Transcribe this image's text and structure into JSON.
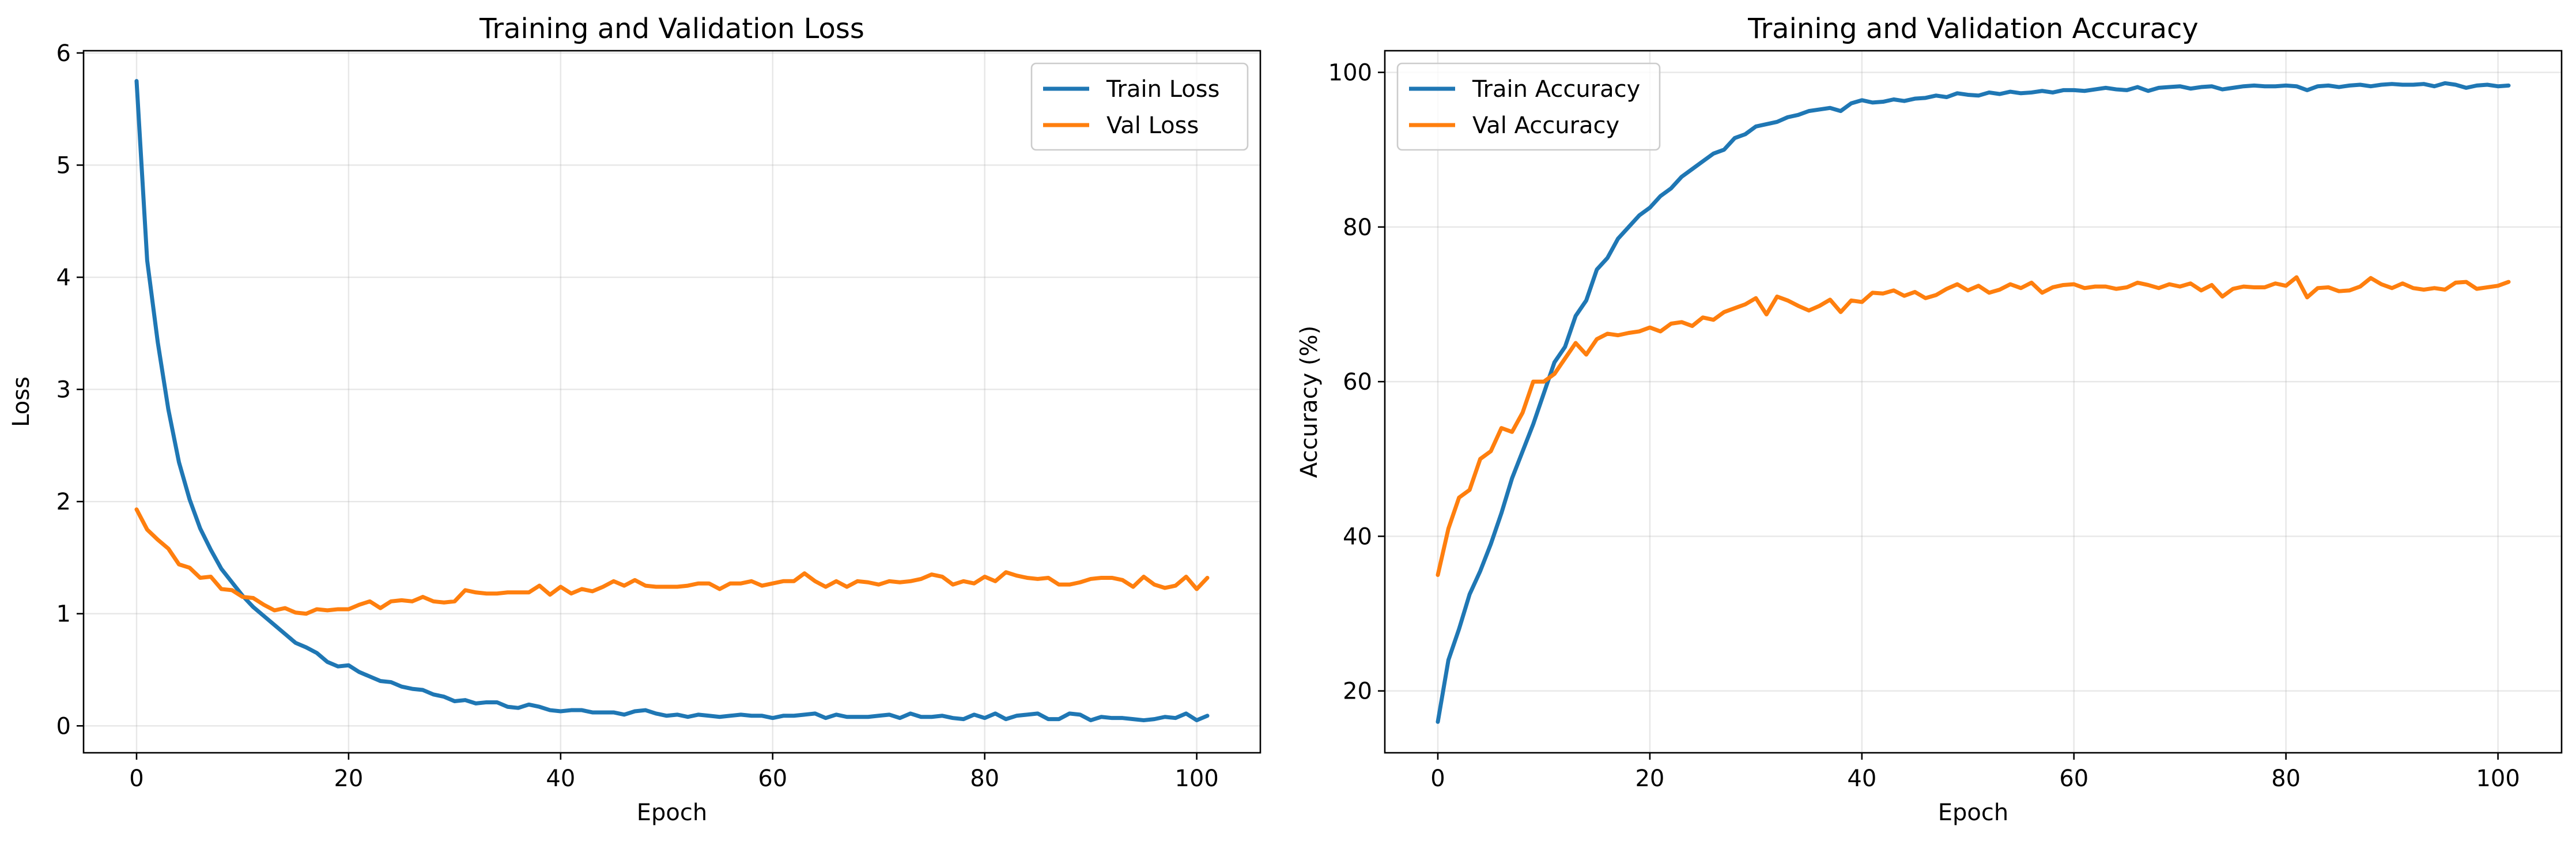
{
  "chart_data": [
    {
      "type": "line",
      "title": "Training and Validation Loss",
      "xlabel": "Epoch",
      "ylabel": "Loss",
      "xlim": [
        -5,
        106
      ],
      "ylim": [
        -0.24,
        6.02
      ],
      "xticks": [
        0,
        20,
        40,
        60,
        80,
        100
      ],
      "yticks": [
        0,
        1,
        2,
        3,
        4,
        5,
        6
      ],
      "grid": true,
      "legend_position": "top-right",
      "series": [
        {
          "name": "Train Loss",
          "color": "#1f77b4",
          "values": [
            5.75,
            4.15,
            3.42,
            2.82,
            2.35,
            2.02,
            1.76,
            1.57,
            1.4,
            1.28,
            1.16,
            1.06,
            0.98,
            0.9,
            0.82,
            0.74,
            0.7,
            0.65,
            0.57,
            0.53,
            0.54,
            0.48,
            0.44,
            0.4,
            0.39,
            0.35,
            0.33,
            0.32,
            0.28,
            0.26,
            0.22,
            0.23,
            0.2,
            0.21,
            0.21,
            0.17,
            0.16,
            0.19,
            0.17,
            0.14,
            0.13,
            0.14,
            0.14,
            0.12,
            0.12,
            0.12,
            0.1,
            0.13,
            0.14,
            0.11,
            0.09,
            0.1,
            0.08,
            0.1,
            0.09,
            0.08,
            0.09,
            0.1,
            0.09,
            0.09,
            0.07,
            0.09,
            0.09,
            0.1,
            0.11,
            0.07,
            0.1,
            0.08,
            0.08,
            0.08,
            0.09,
            0.1,
            0.07,
            0.11,
            0.08,
            0.08,
            0.09,
            0.07,
            0.06,
            0.1,
            0.07,
            0.11,
            0.06,
            0.09,
            0.1,
            0.11,
            0.06,
            0.06,
            0.11,
            0.1,
            0.05,
            0.08,
            0.07,
            0.07,
            0.06,
            0.05,
            0.06,
            0.08,
            0.07,
            0.11,
            0.05,
            0.09
          ]
        },
        {
          "name": "Val Loss",
          "color": "#ff7f0e",
          "values": [
            1.93,
            1.75,
            1.66,
            1.58,
            1.44,
            1.41,
            1.32,
            1.33,
            1.22,
            1.21,
            1.15,
            1.14,
            1.08,
            1.03,
            1.05,
            1.01,
            1.0,
            1.04,
            1.03,
            1.04,
            1.04,
            1.08,
            1.11,
            1.05,
            1.11,
            1.12,
            1.11,
            1.15,
            1.11,
            1.1,
            1.11,
            1.21,
            1.19,
            1.18,
            1.18,
            1.19,
            1.19,
            1.19,
            1.25,
            1.17,
            1.24,
            1.18,
            1.22,
            1.2,
            1.24,
            1.29,
            1.25,
            1.3,
            1.25,
            1.24,
            1.24,
            1.24,
            1.25,
            1.27,
            1.27,
            1.22,
            1.27,
            1.27,
            1.29,
            1.25,
            1.27,
            1.29,
            1.29,
            1.36,
            1.29,
            1.24,
            1.29,
            1.24,
            1.29,
            1.28,
            1.26,
            1.29,
            1.28,
            1.29,
            1.31,
            1.35,
            1.33,
            1.26,
            1.29,
            1.27,
            1.33,
            1.29,
            1.37,
            1.34,
            1.32,
            1.31,
            1.32,
            1.26,
            1.26,
            1.28,
            1.31,
            1.32,
            1.32,
            1.3,
            1.24,
            1.33,
            1.26,
            1.23,
            1.25,
            1.33,
            1.22,
            1.32
          ]
        }
      ]
    },
    {
      "type": "line",
      "title": "Training and Validation Accuracy",
      "xlabel": "Epoch",
      "ylabel": "Accuracy (%)",
      "xlim": [
        -5,
        106
      ],
      "ylim": [
        12.0,
        102.8
      ],
      "xticks": [
        0,
        20,
        40,
        60,
        80,
        100
      ],
      "yticks": [
        20,
        40,
        60,
        80,
        100
      ],
      "grid": true,
      "legend_position": "top-left",
      "series": [
        {
          "name": "Train Accuracy",
          "color": "#1f77b4",
          "values": [
            16.0,
            24.0,
            28.0,
            32.5,
            35.5,
            39.0,
            43.0,
            47.5,
            51.0,
            54.5,
            58.5,
            62.5,
            64.5,
            68.5,
            70.5,
            74.5,
            76.0,
            78.5,
            80.0,
            81.5,
            82.5,
            84.0,
            85.0,
            86.5,
            87.5,
            88.5,
            89.5,
            90.0,
            91.5,
            92.0,
            93.0,
            93.3,
            93.6,
            94.2,
            94.5,
            95.0,
            95.2,
            95.4,
            95.0,
            96.0,
            96.4,
            96.1,
            96.2,
            96.5,
            96.3,
            96.6,
            96.7,
            97.0,
            96.8,
            97.3,
            97.1,
            97.0,
            97.4,
            97.2,
            97.5,
            97.3,
            97.4,
            97.6,
            97.4,
            97.7,
            97.7,
            97.6,
            97.8,
            98.0,
            97.8,
            97.7,
            98.1,
            97.6,
            98.0,
            98.1,
            98.2,
            97.9,
            98.1,
            98.2,
            97.8,
            98.0,
            98.2,
            98.3,
            98.2,
            98.2,
            98.3,
            98.2,
            97.7,
            98.2,
            98.3,
            98.1,
            98.3,
            98.4,
            98.2,
            98.4,
            98.5,
            98.4,
            98.4,
            98.5,
            98.2,
            98.6,
            98.4,
            98.0,
            98.3,
            98.4,
            98.2,
            98.3
          ]
        },
        {
          "name": "Val Accuracy",
          "color": "#ff7f0e",
          "values": [
            35.0,
            41.0,
            45.0,
            46.0,
            50.0,
            51.0,
            54.0,
            53.5,
            56.0,
            60.0,
            60.0,
            61.0,
            63.0,
            65.0,
            63.5,
            65.5,
            66.2,
            66.0,
            66.3,
            66.5,
            67.0,
            66.5,
            67.5,
            67.7,
            67.2,
            68.3,
            68.0,
            69.0,
            69.5,
            70.0,
            70.8,
            68.7,
            71.0,
            70.5,
            69.8,
            69.2,
            69.8,
            70.6,
            69.0,
            70.5,
            70.3,
            71.5,
            71.4,
            71.8,
            71.1,
            71.6,
            70.8,
            71.2,
            72.0,
            72.6,
            71.8,
            72.4,
            71.5,
            71.9,
            72.6,
            72.1,
            72.8,
            71.5,
            72.2,
            72.5,
            72.6,
            72.1,
            72.3,
            72.3,
            72.0,
            72.2,
            72.8,
            72.5,
            72.1,
            72.6,
            72.3,
            72.7,
            71.8,
            72.5,
            71.0,
            72.0,
            72.3,
            72.2,
            72.2,
            72.7,
            72.4,
            73.5,
            70.9,
            72.1,
            72.2,
            71.7,
            71.8,
            72.3,
            73.4,
            72.6,
            72.1,
            72.7,
            72.1,
            71.9,
            72.1,
            71.9,
            72.8,
            72.9,
            72.0,
            72.2,
            72.4,
            72.9
          ]
        }
      ]
    }
  ]
}
